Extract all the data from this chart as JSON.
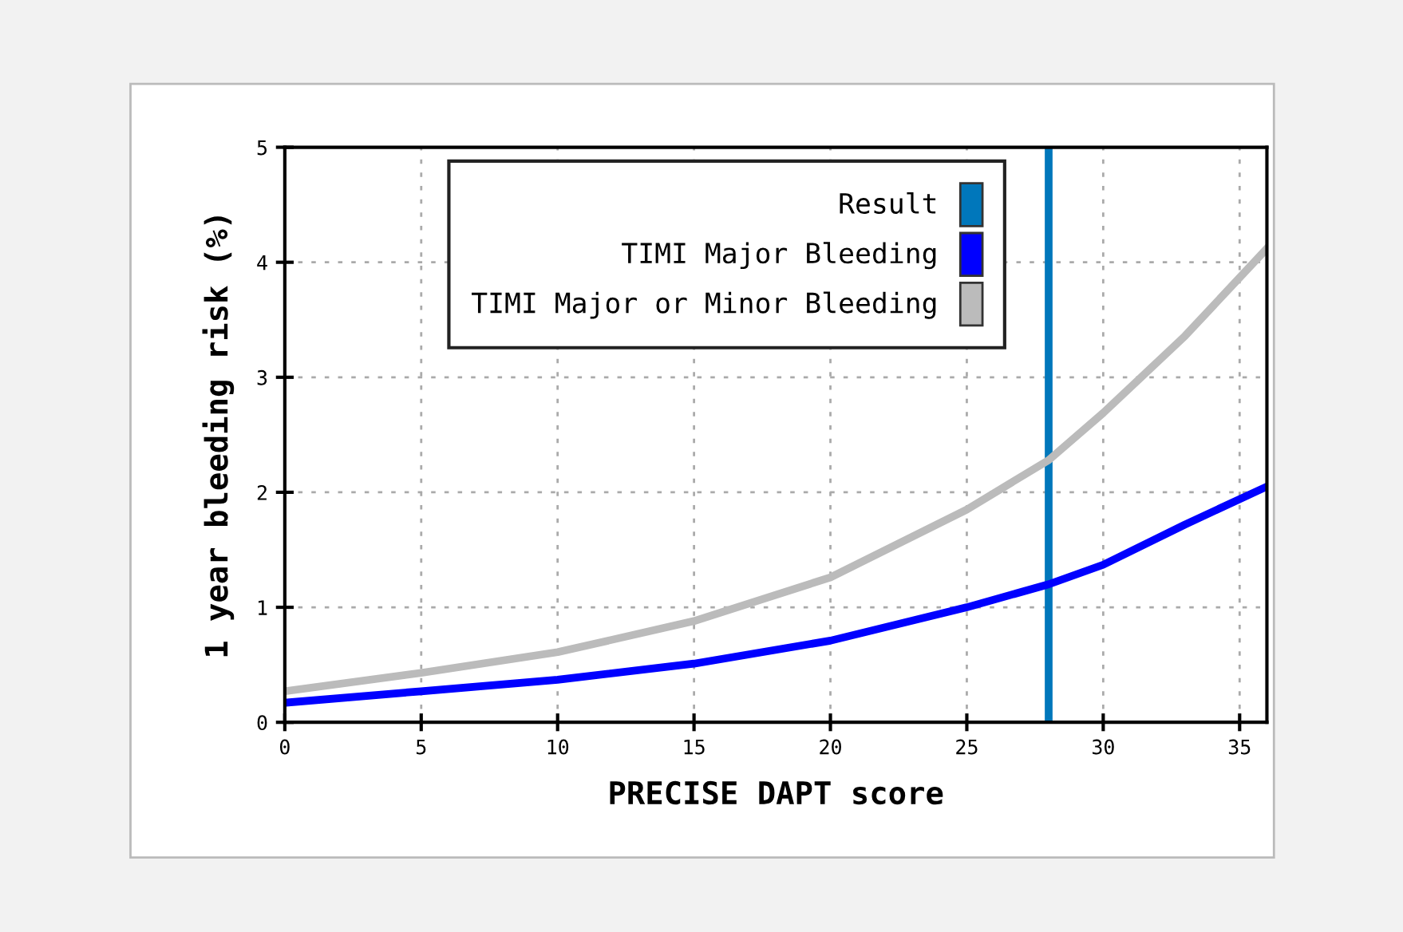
{
  "chart_data": {
    "type": "line",
    "xlabel": "PRECISE DAPT score",
    "ylabel": "1 year bleeding risk (%)",
    "xlim": [
      0,
      36
    ],
    "xticks": [
      0,
      5,
      10,
      15,
      20,
      25,
      30,
      35
    ],
    "ylim": [
      0,
      5
    ],
    "yticks": [
      0,
      1,
      2,
      3,
      4,
      5
    ],
    "grid": true,
    "legend": "top",
    "marker": "none",
    "line_style": "solid",
    "series": [
      {
        "name": "Result",
        "color": "#0077bb",
        "x": [
          28,
          28
        ],
        "values": [
          0,
          5
        ]
      },
      {
        "name": "TIMI Major Bleeding",
        "color": "#0000ff",
        "x": [
          0,
          5,
          10,
          15,
          20,
          25,
          28,
          30,
          33,
          36
        ],
        "values": [
          0.17,
          0.27,
          0.37,
          0.51,
          0.71,
          1.0,
          1.2,
          1.37,
          1.72,
          2.05
        ]
      },
      {
        "name": "TIMI Major or Minor Bleeding",
        "color": "#bbbbbb",
        "x": [
          0,
          5,
          10,
          15,
          20,
          25,
          28,
          30,
          33,
          36
        ],
        "values": [
          0.27,
          0.43,
          0.61,
          0.88,
          1.26,
          1.85,
          2.28,
          2.69,
          3.36,
          4.12
        ]
      }
    ]
  }
}
